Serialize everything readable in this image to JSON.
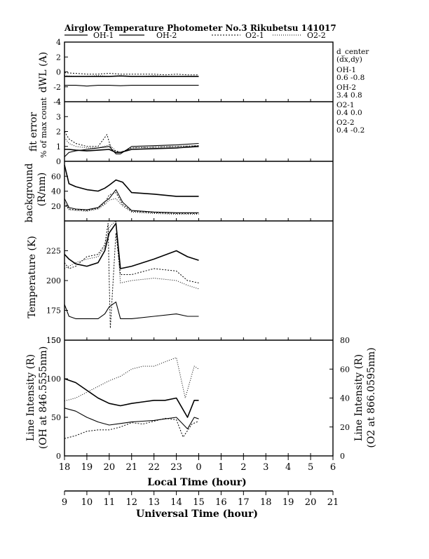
{
  "chart_data": {
    "type": "line",
    "title": "Airglow Temperature Photometer No.3  Rikubetsu    141017",
    "legend": [
      "OH-1",
      "OH-2",
      "O2-1",
      "O2-2"
    ],
    "legend_placement": "top",
    "grid": false,
    "x_top": {
      "label": "Local Time (hour)",
      "ticks": [
        "18",
        "19",
        "20",
        "21",
        "22",
        "23",
        "0",
        "1",
        "2",
        "3",
        "4",
        "5",
        "6"
      ],
      "range": [
        18,
        30
      ]
    },
    "x_bottom": {
      "label": "Universal Time (hour)",
      "ticks": [
        "9",
        "10",
        "11",
        "12",
        "13",
        "14",
        "15",
        "16",
        "17",
        "18",
        "19",
        "20",
        "21"
      ],
      "range": [
        9,
        21
      ]
    },
    "side_labels": {
      "d_center": "d_center",
      "dxdy": "(dx,dy)",
      "oh1": "OH-1",
      "oh1_v": "0.6   -0.8",
      "oh2": "OH-2",
      "oh2_v": "3.4   0.8",
      "o21": "O2-1",
      "o21_v": "0.4   0.0",
      "o22": "O2-2",
      "o22_v": "0.4   -0.2"
    },
    "panels": [
      {
        "id": "dwl",
        "ylabel": "dWL (A)",
        "ylim": [
          -4,
          4
        ],
        "ticks": [
          "4",
          "2",
          "0",
          "-2",
          "-4"
        ],
        "series": [
          {
            "name": "OH-1",
            "x": [
              18,
              18.5,
              19,
              19.5,
              20,
              20.5,
              21,
              21.5,
              22,
              22.5,
              23,
              23.5,
              24
            ],
            "y": [
              -0.6,
              -0.6,
              -0.6,
              -0.6,
              -0.6,
              -0.55,
              -0.6,
              -0.6,
              -0.6,
              -0.6,
              -0.6,
              -0.6,
              -0.6
            ]
          },
          {
            "name": "OH-2",
            "x": [
              18,
              18.5,
              19,
              19.5,
              20,
              20.5,
              21,
              21.5,
              22,
              22.5,
              23,
              23.5,
              24
            ],
            "y": [
              -1.8,
              -1.8,
              -1.9,
              -1.8,
              -1.8,
              -1.85,
              -1.8,
              -1.8,
              -1.8,
              -1.8,
              -1.8,
              -1.8,
              -1.8
            ]
          },
          {
            "name": "O2-1",
            "x": [
              18,
              18.5,
              19,
              19.5,
              20,
              20.5,
              21,
              21.5,
              22,
              22.5,
              23,
              23.5,
              24
            ],
            "y": [
              -0.1,
              -0.2,
              -0.3,
              -0.3,
              -0.2,
              -0.3,
              -0.3,
              -0.3,
              -0.3,
              -0.4,
              -0.3,
              -0.4,
              -0.4
            ]
          },
          {
            "name": "O2-2",
            "x": [
              18,
              18.5,
              19,
              19.5,
              20,
              20.5,
              21,
              21.5,
              22,
              22.5,
              23,
              23.5,
              24
            ],
            "y": [
              -0.5,
              -0.6,
              -0.6,
              -0.5,
              -0.6,
              -0.5,
              -0.6,
              -0.6,
              -0.5,
              -0.6,
              -0.6,
              -0.6,
              -0.6
            ]
          }
        ]
      },
      {
        "id": "fit",
        "ylabel": "fit error",
        "ylabel2": "% of max count",
        "ylim": [
          0,
          4
        ],
        "ticks": [
          "4",
          "3",
          "2",
          "1",
          "0"
        ],
        "series": [
          {
            "name": "OH-1",
            "x": [
              18,
              18.2,
              18.5,
              19,
              19.5,
              20,
              20.3,
              20.5,
              21,
              22,
              23,
              24
            ],
            "y": [
              0.8,
              0.8,
              0.75,
              0.7,
              0.75,
              0.8,
              0.6,
              0.6,
              0.8,
              0.85,
              0.9,
              1.0
            ]
          },
          {
            "name": "OH-2",
            "x": [
              18,
              18.2,
              18.5,
              19,
              19.5,
              20,
              20.3,
              20.5,
              21,
              22,
              23,
              24
            ],
            "y": [
              0.3,
              0.6,
              0.7,
              0.8,
              0.9,
              1.0,
              0.5,
              0.5,
              1.0,
              1.05,
              1.1,
              1.2
            ]
          },
          {
            "name": "O2-1",
            "x": [
              18,
              18.2,
              18.5,
              19,
              19.5,
              19.9,
              20.1,
              20.5,
              21,
              22,
              23,
              24
            ],
            "y": [
              2.0,
              1.5,
              1.2,
              1.0,
              1.0,
              1.8,
              0.8,
              0.6,
              0.9,
              0.95,
              1.0,
              1.05
            ]
          },
          {
            "name": "O2-2",
            "x": [
              18,
              18.2,
              18.5,
              19,
              19.5,
              20,
              20.3,
              20.5,
              21,
              22,
              23,
              24
            ],
            "y": [
              1.6,
              1.2,
              1.0,
              0.9,
              0.9,
              1.1,
              0.7,
              0.6,
              0.9,
              0.95,
              1.0,
              1.05
            ]
          }
        ]
      },
      {
        "id": "bg",
        "ylabel": "background",
        "ylabel2": "(R/nm)",
        "ylim": [
          0,
          80
        ],
        "ticks": [
          "60",
          "40",
          "20"
        ],
        "series": [
          {
            "name": "OH-1",
            "x": [
              18,
              18.2,
              18.5,
              19,
              19.5,
              19.8,
              20,
              20.3,
              20.6,
              21,
              22,
              23,
              24
            ],
            "y": [
              75,
              50,
              46,
              42,
              40,
              44,
              48,
              55,
              52,
              38,
              36,
              33,
              33
            ]
          },
          {
            "name": "OH-2",
            "x": [
              18,
              18.2,
              18.5,
              19,
              19.5,
              19.8,
              20,
              20.3,
              20.6,
              21,
              22,
              23,
              24
            ],
            "y": [
              30,
              18,
              16,
              15,
              18,
              26,
              30,
              42,
              25,
              14,
              12,
              11,
              11
            ]
          },
          {
            "name": "O2-1",
            "x": [
              18,
              18.2,
              18.5,
              19,
              19.5,
              19.8,
              20,
              20.3,
              20.6,
              21,
              22,
              23,
              24
            ],
            "y": [
              25,
              16,
              15,
              14,
              17,
              24,
              35,
              38,
              22,
              13,
              11,
              10,
              10
            ]
          },
          {
            "name": "O2-2",
            "x": [
              18,
              18.2,
              18.5,
              19,
              19.5,
              19.8,
              20,
              20.3,
              20.6,
              21,
              22,
              23,
              24
            ],
            "y": [
              22,
              15,
              14,
              13,
              16,
              22,
              28,
              30,
              20,
              12,
              10,
              9,
              9
            ]
          }
        ]
      },
      {
        "id": "temp",
        "ylabel": "Temperature (K)",
        "ylim": [
          150,
          250
        ],
        "ticks": [
          "225",
          "200",
          "175",
          "150"
        ],
        "series": [
          {
            "name": "OH-1",
            "x": [
              18,
              18.2,
              18.5,
              19,
              19.5,
              19.8,
              20,
              20.3,
              20.5,
              21,
              22,
              23,
              23.5,
              24
            ],
            "y": [
              222,
              218,
              214,
              212,
              215,
              225,
              240,
              248,
              210,
              212,
              218,
              225,
              220,
              217
            ]
          },
          {
            "name": "OH-2",
            "x": [
              18,
              18.2,
              18.5,
              19,
              19.5,
              19.8,
              20,
              20.3,
              20.5,
              21,
              22,
              23,
              23.5,
              24
            ],
            "y": [
              180,
              170,
              168,
              168,
              168,
              172,
              178,
              182,
              168,
              168,
              170,
              172,
              170,
              170
            ]
          },
          {
            "name": "O2-1",
            "x": [
              18,
              18.2,
              18.5,
              19,
              19.5,
              19.8,
              19.95,
              20.0,
              20.05,
              20.3,
              20.5,
              21,
              22,
              23,
              23.5,
              24
            ],
            "y": [
              215,
              210,
              212,
              220,
              222,
              230,
              248,
              200,
              160,
              240,
              205,
              205,
              210,
              208,
              200,
              198
            ]
          },
          {
            "name": "O2-2",
            "x": [
              18,
              18.2,
              18.5,
              19,
              19.5,
              19.8,
              20,
              20.3,
              20.5,
              21,
              22,
              23,
              23.5,
              24
            ],
            "y": [
              210,
              212,
              215,
              218,
              220,
              228,
              245,
              250,
              198,
              200,
              202,
              200,
              196,
              193
            ]
          }
        ]
      },
      {
        "id": "int",
        "ylabel": "Line Intensity (R)",
        "ylabel2": "(OH at 846.5555nm)",
        "ylabel_right": "Line Intensity (R)",
        "ylabel_right2": "(O2 at 866.0595nm)",
        "ylim": [
          0,
          150
        ],
        "ylim_right": [
          0,
          80
        ],
        "ticks": [
          "150",
          "100",
          "50",
          "0"
        ],
        "ticks_right": [
          "80",
          "60",
          "40",
          "20",
          "0"
        ],
        "series": [
          {
            "name": "OH-1",
            "axis": "left",
            "x": [
              18,
              18.5,
              19,
              19.5,
              20,
              20.5,
              21,
              21.5,
              22,
              22.5,
              23,
              23.5,
              23.8,
              24
            ],
            "y": [
              100,
              95,
              85,
              75,
              68,
              65,
              68,
              70,
              72,
              72,
              75,
              50,
              72,
              72
            ]
          },
          {
            "name": "OH-2",
            "axis": "left",
            "x": [
              18,
              18.5,
              19,
              19.5,
              20,
              20.5,
              21,
              21.5,
              22,
              22.5,
              23,
              23.5,
              23.8,
              24
            ],
            "y": [
              62,
              58,
              50,
              44,
              40,
              42,
              44,
              45,
              46,
              48,
              50,
              35,
              50,
              48
            ]
          },
          {
            "name": "O2-1",
            "axis": "right",
            "x": [
              18,
              18.5,
              19,
              19.5,
              20,
              20.5,
              21,
              21.5,
              22,
              22.5,
              23,
              23.3,
              23.7,
              24
            ],
            "y": [
              12,
              14,
              17,
              18,
              18,
              20,
              23,
              22,
              24,
              26,
              25,
              13,
              22,
              24
            ]
          },
          {
            "name": "O2-2",
            "axis": "right",
            "x": [
              18,
              18.5,
              19,
              19.5,
              20,
              20.5,
              21,
              21.5,
              22,
              22.5,
              23,
              23.4,
              23.8,
              24
            ],
            "y": [
              38,
              40,
              44,
              48,
              52,
              55,
              60,
              62,
              62,
              65,
              68,
              40,
              62,
              60
            ]
          }
        ]
      }
    ]
  }
}
